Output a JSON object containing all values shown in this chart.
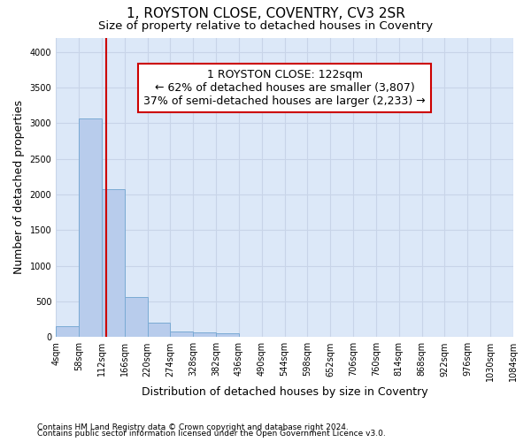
{
  "title": "1, ROYSTON CLOSE, COVENTRY, CV3 2SR",
  "subtitle": "Size of property relative to detached houses in Coventry",
  "xlabel": "Distribution of detached houses by size in Coventry",
  "ylabel": "Number of detached properties",
  "footnote1": "Contains HM Land Registry data © Crown copyright and database right 2024.",
  "footnote2": "Contains public sector information licensed under the Open Government Licence v3.0.",
  "bar_left_edges": [
    4,
    58,
    112,
    166,
    220,
    274,
    328,
    382,
    436,
    490,
    544,
    598,
    652,
    706,
    760,
    814,
    868,
    922,
    976,
    1030
  ],
  "bar_values": [
    150,
    3060,
    2075,
    565,
    205,
    80,
    60,
    50,
    0,
    0,
    0,
    0,
    0,
    0,
    0,
    0,
    0,
    0,
    0,
    0
  ],
  "bin_width": 54,
  "bar_color": "#b8ccec",
  "bar_edge_color": "#7aaad4",
  "grid_color": "#c8d4e8",
  "background_color": "#dce8f8",
  "property_size": 122,
  "vline_color": "#cc0000",
  "annotation_line1": "1 ROYSTON CLOSE: 122sqm",
  "annotation_line2": "← 62% of detached houses are smaller (3,807)",
  "annotation_line3": "37% of semi-detached houses are larger (2,233) →",
  "annotation_box_color": "#ffffff",
  "annotation_border_color": "#cc0000",
  "ylim": [
    0,
    4200
  ],
  "yticks": [
    0,
    500,
    1000,
    1500,
    2000,
    2500,
    3000,
    3500,
    4000
  ],
  "tick_labels": [
    "4sqm",
    "58sqm",
    "112sqm",
    "166sqm",
    "220sqm",
    "274sqm",
    "328sqm",
    "382sqm",
    "436sqm",
    "490sqm",
    "544sqm",
    "598sqm",
    "652sqm",
    "706sqm",
    "760sqm",
    "814sqm",
    "868sqm",
    "922sqm",
    "976sqm",
    "1030sqm",
    "1084sqm"
  ],
  "title_fontsize": 11,
  "subtitle_fontsize": 9.5,
  "axis_label_fontsize": 9,
  "tick_fontsize": 7,
  "annotation_fontsize": 9,
  "footnote_fontsize": 6.5
}
